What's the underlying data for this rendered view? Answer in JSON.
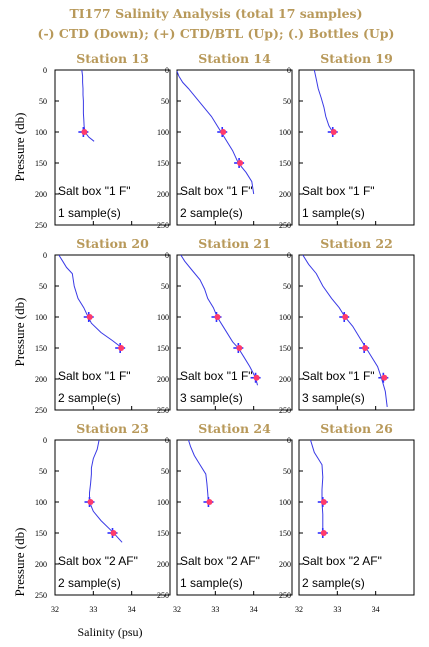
{
  "figure": {
    "title_line1": "TI177  Salinity Analysis (total 17 samples)",
    "title_line2": "(-) CTD (Down); (+) CTD/BTL (Up); (.) Bottles (Up)",
    "ylabel": "Pressure (db)",
    "xlabel": "Salinity (psu)",
    "colors": {
      "title": "#b8995a",
      "profile": "#3a3ae6",
      "bottle": "#ff3b6b",
      "ctd_btl": "#3030ff"
    }
  },
  "chart_data": [
    {
      "type": "line",
      "title": "Station 13",
      "box_label": "Salt box \"1 F\"",
      "samples_label": "1 sample(s)",
      "xlim": [
        32,
        35
      ],
      "ylim": [
        250,
        0
      ],
      "xticks": [
        32,
        33,
        34
      ],
      "yticks": [
        0,
        50,
        100,
        150,
        200,
        250
      ],
      "profile": [
        [
          32.7,
          0
        ],
        [
          32.72,
          10
        ],
        [
          32.72,
          20
        ],
        [
          32.73,
          30
        ],
        [
          32.73,
          40
        ],
        [
          32.74,
          50
        ],
        [
          32.74,
          60
        ],
        [
          32.74,
          70
        ],
        [
          32.75,
          80
        ],
        [
          32.76,
          90
        ],
        [
          32.78,
          100
        ],
        [
          32.88,
          108
        ],
        [
          33.02,
          115
        ]
      ],
      "bottles": [
        {
          "salinity": 32.74,
          "pressure": 100
        }
      ]
    },
    {
      "type": "line",
      "title": "Station 14",
      "box_label": "Salt box \"1 F\"",
      "samples_label": "2 sample(s)",
      "xlim": [
        32,
        35
      ],
      "ylim": [
        250,
        0
      ],
      "xticks": [
        32,
        33,
        34
      ],
      "yticks": [
        0,
        50,
        100,
        150,
        200,
        250
      ],
      "profile": [
        [
          32.0,
          2
        ],
        [
          32.05,
          10
        ],
        [
          32.15,
          20
        ],
        [
          32.3,
          30
        ],
        [
          32.5,
          45
        ],
        [
          32.7,
          60
        ],
        [
          32.9,
          75
        ],
        [
          33.05,
          90
        ],
        [
          33.15,
          100
        ],
        [
          33.3,
          115
        ],
        [
          33.45,
          130
        ],
        [
          33.6,
          150
        ],
        [
          33.8,
          165
        ],
        [
          33.95,
          180
        ],
        [
          34.0,
          200
        ]
      ],
      "bottles": [
        {
          "salinity": 33.18,
          "pressure": 100
        },
        {
          "salinity": 33.62,
          "pressure": 150
        }
      ]
    },
    {
      "type": "line",
      "title": "Station 19",
      "box_label": "Salt box \"1 F\"",
      "samples_label": "1 sample(s)",
      "xlim": [
        32,
        35
      ],
      "ylim": [
        250,
        0
      ],
      "xticks": [
        32,
        33,
        34
      ],
      "yticks": [
        0,
        50,
        100,
        150,
        200,
        250
      ],
      "profile": [
        [
          32.4,
          0
        ],
        [
          32.45,
          15
        ],
        [
          32.5,
          30
        ],
        [
          32.58,
          45
        ],
        [
          32.65,
          60
        ],
        [
          32.7,
          75
        ],
        [
          32.78,
          90
        ],
        [
          32.88,
          100
        ]
      ],
      "bottles": [
        {
          "salinity": 32.88,
          "pressure": 100
        }
      ]
    },
    {
      "type": "line",
      "title": "Station 20",
      "box_label": "Salt box \"1 F\"",
      "samples_label": "2 sample(s)",
      "xlim": [
        32,
        35
      ],
      "ylim": [
        250,
        0
      ],
      "xticks": [
        32,
        33,
        34
      ],
      "yticks": [
        0,
        50,
        100,
        150,
        200,
        250
      ],
      "profile": [
        [
          32.1,
          0
        ],
        [
          32.2,
          10
        ],
        [
          32.3,
          20
        ],
        [
          32.45,
          30
        ],
        [
          32.5,
          50
        ],
        [
          32.6,
          70
        ],
        [
          32.75,
          85
        ],
        [
          32.85,
          98
        ],
        [
          32.95,
          110
        ],
        [
          33.2,
          125
        ],
        [
          33.5,
          138
        ],
        [
          33.75,
          150
        ]
      ],
      "bottles": [
        {
          "salinity": 32.88,
          "pressure": 100
        },
        {
          "salinity": 33.7,
          "pressure": 150
        }
      ]
    },
    {
      "type": "line",
      "title": "Station 21",
      "box_label": "Salt box \"1 F\"",
      "samples_label": "3 sample(s)",
      "xlim": [
        32,
        35
      ],
      "ylim": [
        250,
        0
      ],
      "xticks": [
        32,
        33,
        34
      ],
      "yticks": [
        0,
        50,
        100,
        150,
        200,
        250
      ],
      "profile": [
        [
          32.1,
          0
        ],
        [
          32.2,
          10
        ],
        [
          32.4,
          25
        ],
        [
          32.6,
          40
        ],
        [
          32.72,
          55
        ],
        [
          32.8,
          70
        ],
        [
          32.95,
          85
        ],
        [
          33.05,
          100
        ],
        [
          33.2,
          115
        ],
        [
          33.45,
          140
        ],
        [
          33.6,
          150
        ],
        [
          33.75,
          165
        ],
        [
          33.9,
          180
        ],
        [
          34.05,
          198
        ],
        [
          34.1,
          210
        ]
      ],
      "bottles": [
        {
          "salinity": 33.03,
          "pressure": 100
        },
        {
          "salinity": 33.6,
          "pressure": 150
        },
        {
          "salinity": 34.05,
          "pressure": 198
        }
      ]
    },
    {
      "type": "line",
      "title": "Station 22",
      "box_label": "Salt box \"1 F\"",
      "samples_label": "3 sample(s)",
      "xlim": [
        32,
        35
      ],
      "ylim": [
        250,
        0
      ],
      "xticks": [
        32,
        33,
        34
      ],
      "yticks": [
        0,
        50,
        100,
        150,
        200,
        250
      ],
      "profile": [
        [
          32.1,
          0
        ],
        [
          32.25,
          15
        ],
        [
          32.45,
          30
        ],
        [
          32.62,
          50
        ],
        [
          32.85,
          70
        ],
        [
          33.05,
          85
        ],
        [
          33.2,
          100
        ],
        [
          33.4,
          115
        ],
        [
          33.6,
          135
        ],
        [
          33.75,
          150
        ],
        [
          33.9,
          165
        ],
        [
          34.05,
          180
        ],
        [
          34.15,
          198
        ],
        [
          34.25,
          220
        ],
        [
          34.3,
          245
        ]
      ],
      "bottles": [
        {
          "salinity": 33.18,
          "pressure": 100
        },
        {
          "salinity": 33.7,
          "pressure": 150
        },
        {
          "salinity": 34.2,
          "pressure": 198
        }
      ]
    },
    {
      "type": "line",
      "title": "Station 23",
      "box_label": "Salt box \"2 AF\"",
      "samples_label": "2 sample(s)",
      "xlim": [
        32,
        35
      ],
      "ylim": [
        250,
        0
      ],
      "xticks": [
        32,
        33,
        34
      ],
      "yticks": [
        0,
        50,
        100,
        150,
        200,
        250
      ],
      "profile": [
        [
          33.15,
          0
        ],
        [
          33.1,
          15
        ],
        [
          33.0,
          30
        ],
        [
          32.95,
          45
        ],
        [
          32.95,
          55
        ],
        [
          32.93,
          70
        ],
        [
          32.9,
          85
        ],
        [
          32.9,
          100
        ],
        [
          33.0,
          115
        ],
        [
          33.2,
          130
        ],
        [
          33.5,
          148
        ],
        [
          33.75,
          165
        ]
      ],
      "bottles": [
        {
          "salinity": 32.9,
          "pressure": 100
        },
        {
          "salinity": 33.5,
          "pressure": 150
        }
      ]
    },
    {
      "type": "line",
      "title": "Station 24",
      "box_label": "Salt box \"2 AF\"",
      "samples_label": "1 sample(s)",
      "xlim": [
        32,
        35
      ],
      "ylim": [
        250,
        0
      ],
      "xticks": [
        32,
        33,
        34
      ],
      "yticks": [
        0,
        50,
        100,
        150,
        200,
        250
      ],
      "profile": [
        [
          32.3,
          0
        ],
        [
          32.35,
          10
        ],
        [
          32.45,
          25
        ],
        [
          32.6,
          40
        ],
        [
          32.75,
          55
        ],
        [
          32.78,
          70
        ],
        [
          32.8,
          85
        ],
        [
          32.82,
          100
        ]
      ],
      "bottles": [
        {
          "salinity": 32.82,
          "pressure": 100
        }
      ]
    },
    {
      "type": "line",
      "title": "Station 26",
      "box_label": "Salt box \"2 AF\"",
      "samples_label": "2 sample(s)",
      "xlim": [
        32,
        35
      ],
      "ylim": [
        250,
        0
      ],
      "xticks": [
        32,
        33,
        34
      ],
      "yticks": [
        0,
        50,
        100,
        150,
        200,
        250
      ],
      "profile": [
        [
          32.3,
          0
        ],
        [
          32.35,
          10
        ],
        [
          32.4,
          20
        ],
        [
          32.5,
          30
        ],
        [
          32.6,
          40
        ],
        [
          32.62,
          60
        ],
        [
          32.6,
          80
        ],
        [
          32.6,
          100
        ],
        [
          32.62,
          120
        ],
        [
          32.62,
          150
        ]
      ],
      "bottles": [
        {
          "salinity": 32.62,
          "pressure": 100
        },
        {
          "salinity": 32.62,
          "pressure": 150
        }
      ]
    }
  ]
}
